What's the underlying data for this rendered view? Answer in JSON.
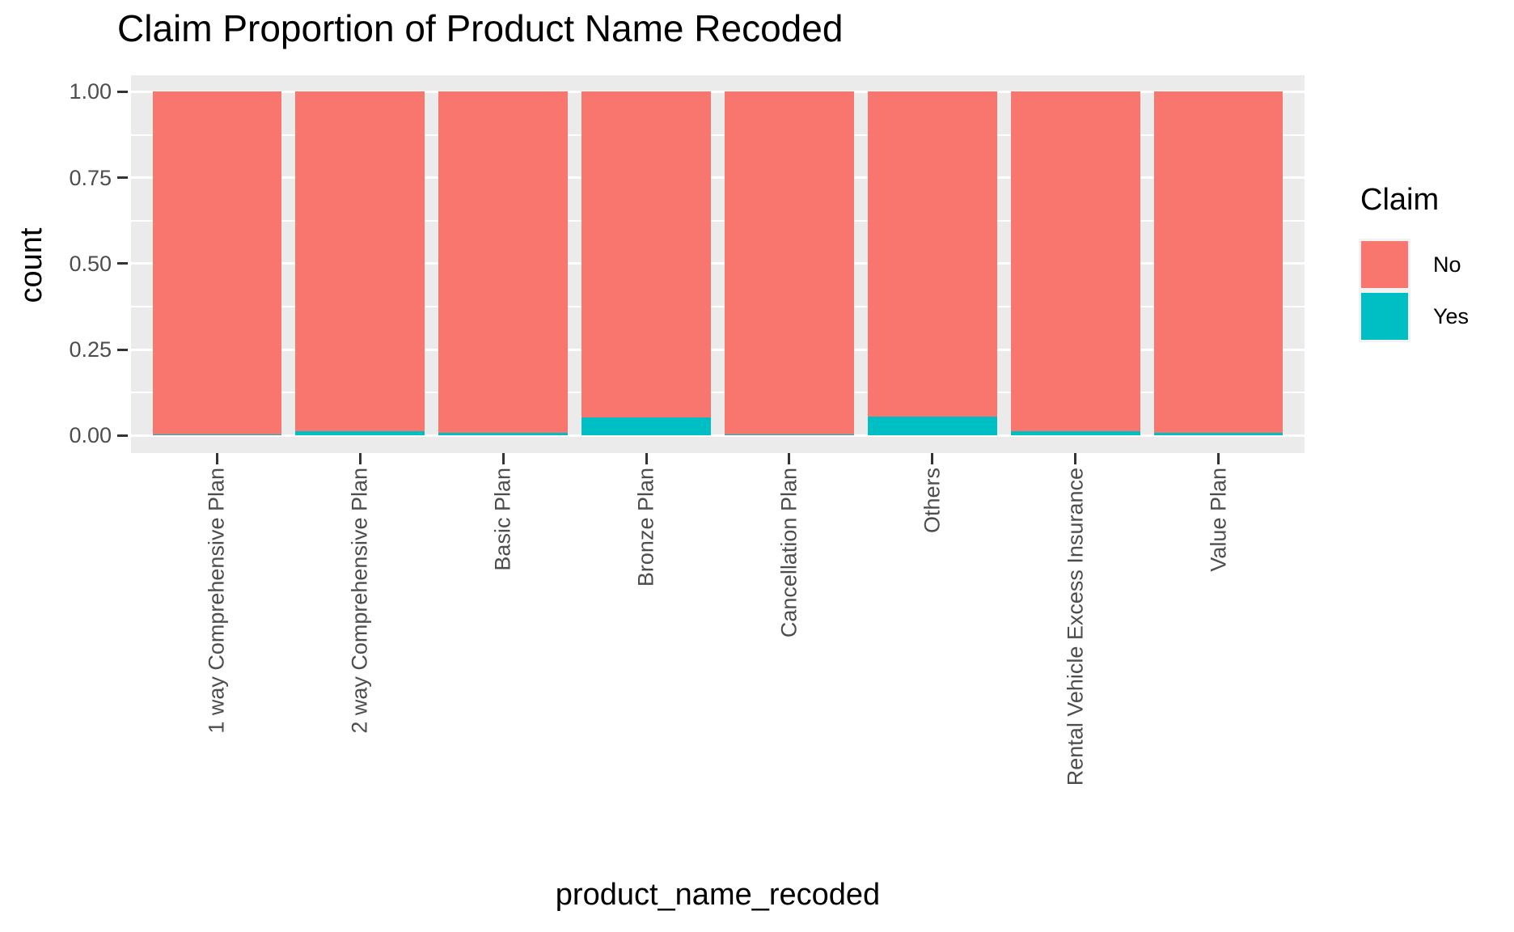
{
  "chart_data": {
    "type": "bar",
    "stacked": true,
    "normalized": true,
    "title": "Claim Proportion of Product Name Recoded",
    "xlabel": "product_name_recoded",
    "ylabel": "count",
    "categories": [
      "1 way Comprehensive Plan",
      "2 way Comprehensive Plan",
      "Basic Plan",
      "Bronze Plan",
      "Cancellation Plan",
      "Others",
      "Rental Vehicle Excess Insurance",
      "Value Plan"
    ],
    "series": [
      {
        "name": "No",
        "color": "#F8766D",
        "values": [
          0.997,
          0.988,
          0.993,
          0.948,
          0.997,
          0.945,
          0.988,
          0.992
        ]
      },
      {
        "name": "Yes",
        "color": "#00BFC4",
        "values": [
          0.003,
          0.012,
          0.007,
          0.052,
          0.003,
          0.055,
          0.012,
          0.008
        ]
      }
    ],
    "ylim": [
      0,
      1
    ],
    "y_major_ticks": [
      0,
      0.25,
      0.5,
      0.75,
      1.0
    ],
    "y_tick_labels": [
      "0.00",
      "0.25",
      "0.50",
      "0.75",
      "1.00"
    ],
    "grid": "major-and-minor-horizontal",
    "legend": {
      "title": "Claim",
      "position": "right",
      "entries": [
        {
          "label": "No",
          "color": "#F8766D"
        },
        {
          "label": "Yes",
          "color": "#00BFC4"
        }
      ]
    },
    "style": {
      "panel_background": "#EBEBEB",
      "gridline_color": "#FFFFFF",
      "tick_text_color": "#4D4D4D",
      "tick_mark_color": "#333333",
      "legend_key_background": "#F2F2F2"
    }
  }
}
